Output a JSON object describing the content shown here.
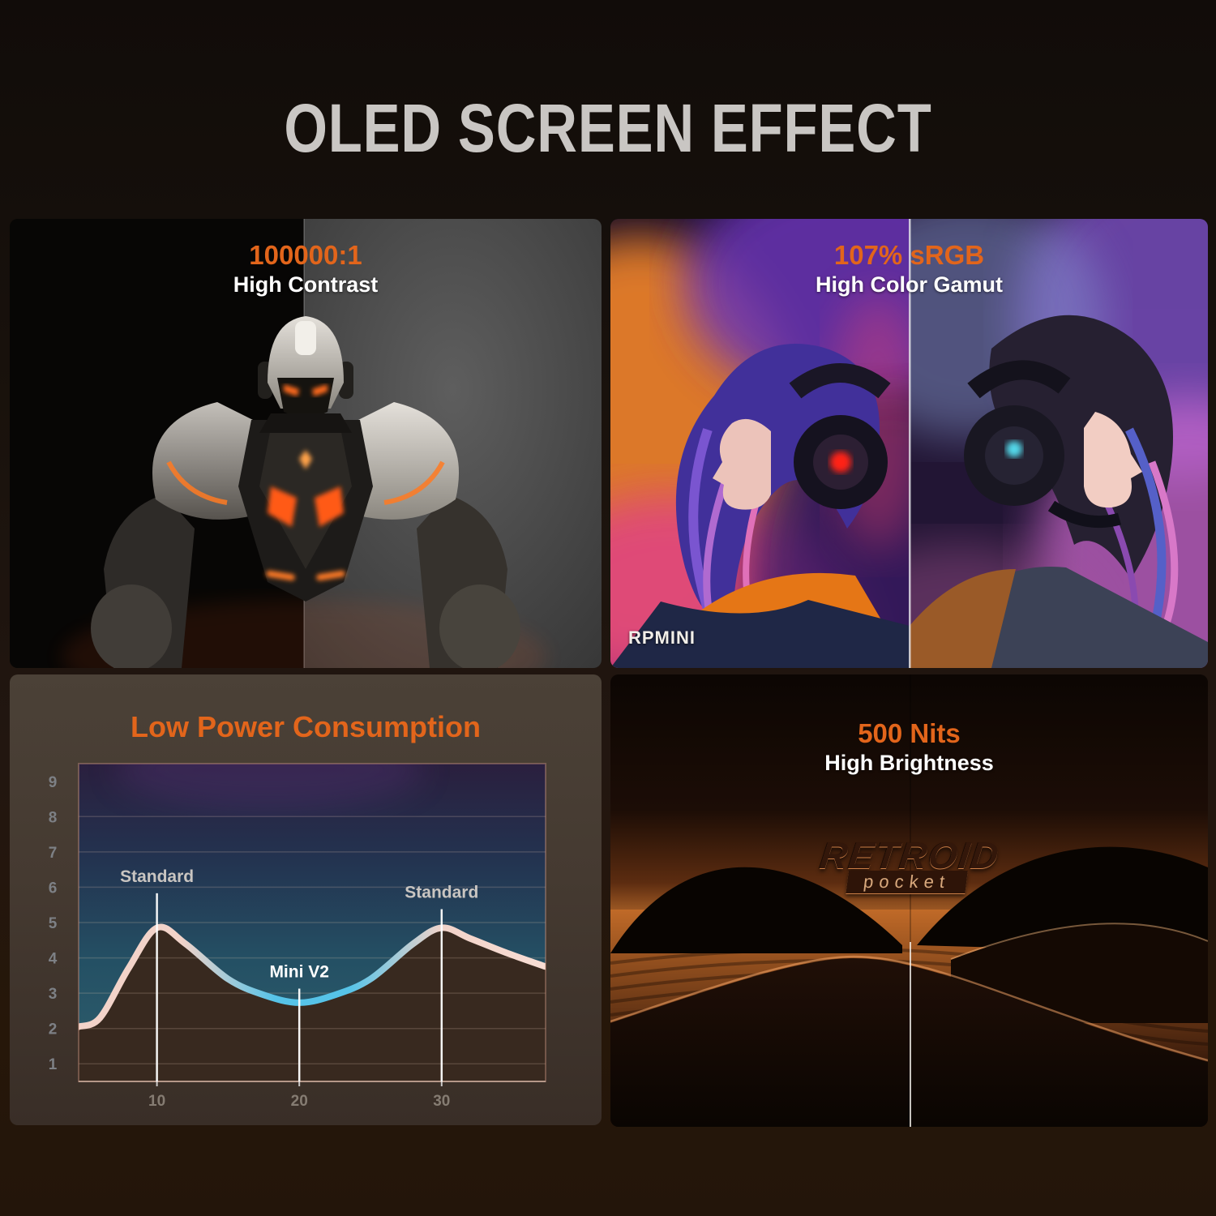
{
  "page": {
    "title": "OLED SCREEN EFFECT"
  },
  "colors": {
    "accent_orange": "#e2651b",
    "title_gray": "#c9c6c3",
    "curve_pink": "#f2d3c9",
    "curve_cyan": "#56c3e8",
    "chart_area_fill": "#38291f"
  },
  "panels": {
    "high_contrast": {
      "stat": "100000:1",
      "label": "High Contrast"
    },
    "color_gamut": {
      "stat": "107% sRGB",
      "label": "High Color Gamut",
      "watermark": "RPMINI"
    },
    "low_power": {
      "title": "Low Power Consumption"
    },
    "brightness": {
      "stat": "500 Nits",
      "label": "High Brightness",
      "logo": {
        "main": "RETROID",
        "sub": "pocket"
      }
    }
  },
  "chart_data": {
    "type": "area",
    "title": "Low Power Consumption",
    "xlabel": "",
    "ylabel": "",
    "xlim": [
      4.5,
      37.3
    ],
    "ylim": [
      0.5,
      9.5
    ],
    "yticks": [
      1,
      2,
      3,
      4,
      5,
      6,
      7,
      8,
      9
    ],
    "xticks": [
      10,
      20,
      30
    ],
    "grid": true,
    "legend_position": "none",
    "series": [
      {
        "name": "power_consumption_curve",
        "points": [
          [
            4.5,
            2.05
          ],
          [
            6,
            2.3
          ],
          [
            8,
            3.7
          ],
          [
            10,
            4.85
          ],
          [
            12,
            4.4
          ],
          [
            15,
            3.4
          ],
          [
            17.5,
            2.95
          ],
          [
            20,
            2.73
          ],
          [
            22.5,
            2.95
          ],
          [
            25,
            3.4
          ],
          [
            28,
            4.4
          ],
          [
            30,
            4.85
          ],
          [
            32,
            4.55
          ],
          [
            34.5,
            4.15
          ],
          [
            37.3,
            3.75
          ]
        ]
      }
    ],
    "annotations": [
      {
        "label": "Standard",
        "x": 10,
        "label_v": 6.15,
        "color": "#c9c5c1"
      },
      {
        "label": "Mini V2",
        "x": 20,
        "label_v": 3.45,
        "color": "#ffffff"
      },
      {
        "label": "Standard",
        "x": 30,
        "label_v": 5.7,
        "color": "#c9c5c1"
      }
    ]
  }
}
